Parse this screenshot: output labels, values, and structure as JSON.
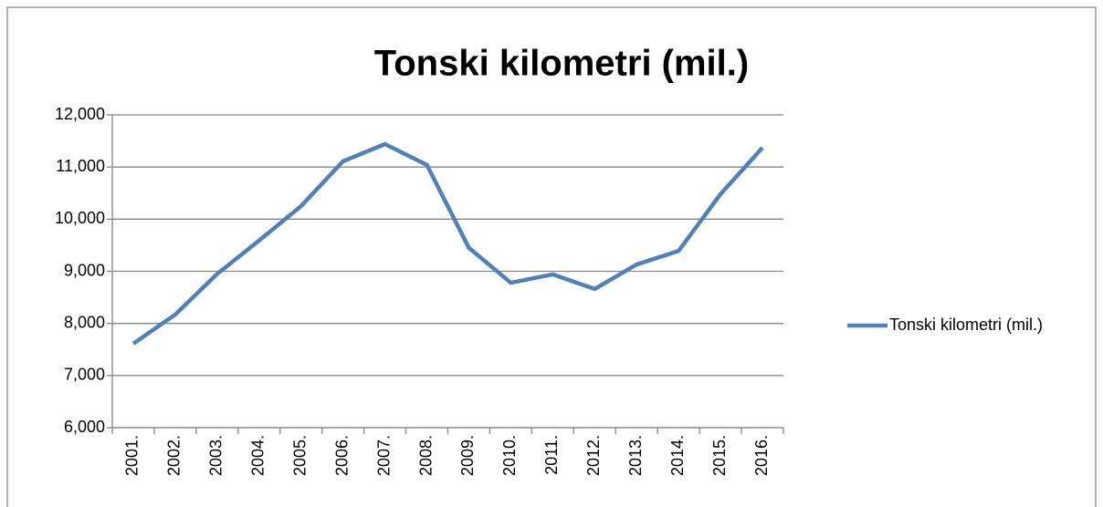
{
  "chart_data": {
    "type": "line",
    "title": "Tonski kilometri (mil.)",
    "categories": [
      "2001.",
      "2002.",
      "2003.",
      "2004.",
      "2005.",
      "2006.",
      "2007.",
      "2008.",
      "2009.",
      "2010.",
      "2011.",
      "2012.",
      "2013.",
      "2014.",
      "2015.",
      "2016."
    ],
    "series": [
      {
        "name": "Tonski kilometri (mil.)",
        "color": "#4f81bd",
        "values": [
          7610,
          8170,
          8950,
          9590,
          10250,
          11110,
          11440,
          11040,
          9450,
          8780,
          8940,
          8660,
          9130,
          9390,
          10480,
          11370
        ]
      }
    ],
    "ylim": [
      6000,
      12000
    ],
    "yticks": [
      {
        "value": 6000,
        "label": "6,000"
      },
      {
        "value": 7000,
        "label": "7,000"
      },
      {
        "value": 8000,
        "label": "8,000"
      },
      {
        "value": 9000,
        "label": "9,000"
      },
      {
        "value": 10000,
        "label": "10,000"
      },
      {
        "value": 11000,
        "label": "11,000"
      },
      {
        "value": 12000,
        "label": "12,000"
      }
    ],
    "grid": true,
    "legend": "right"
  }
}
